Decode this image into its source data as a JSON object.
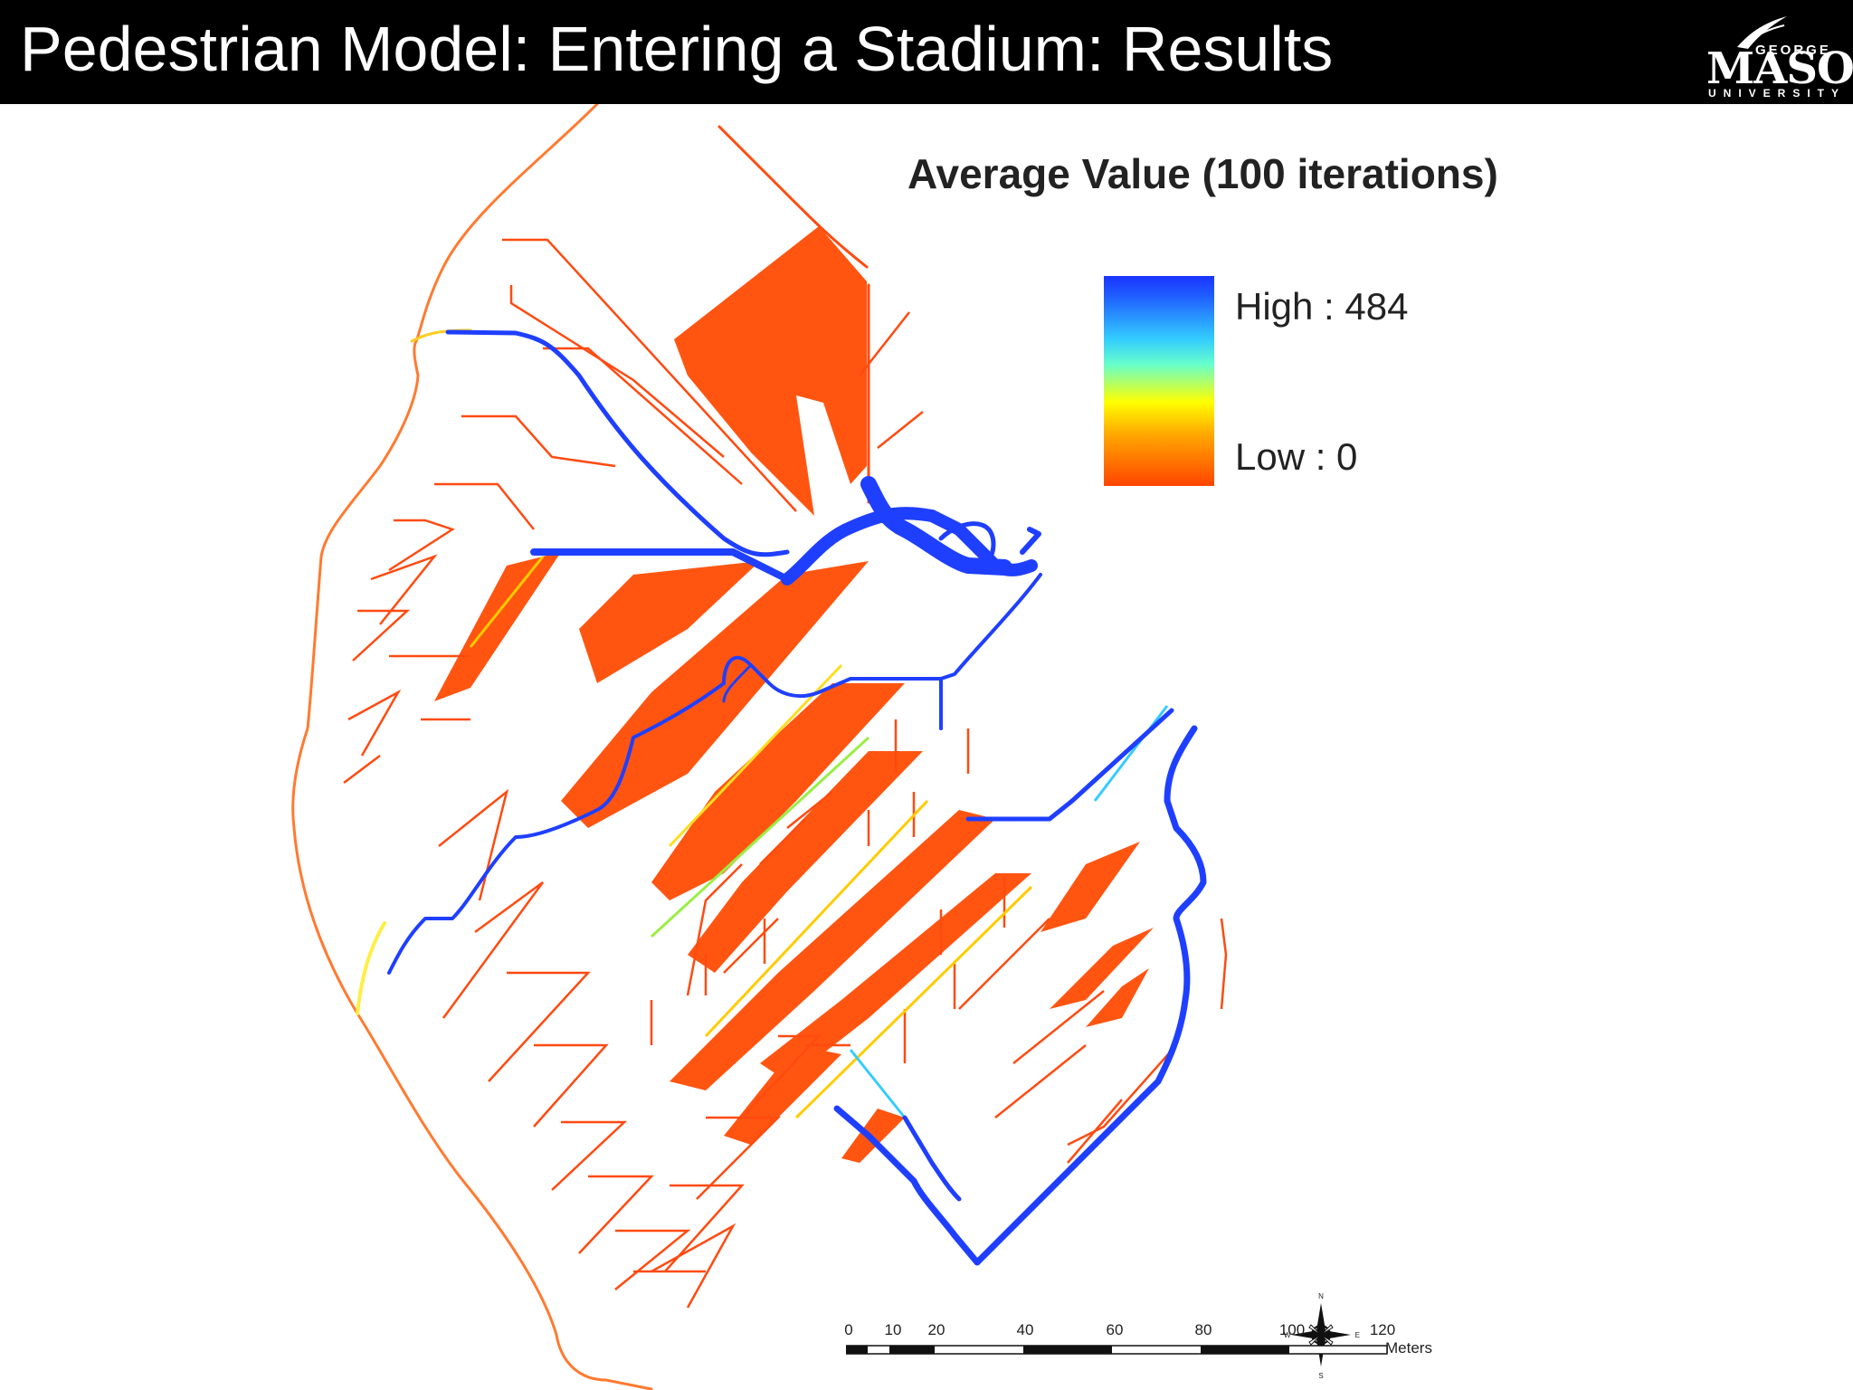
{
  "slide": {
    "title": "Pedestrian Model: Entering a Stadium: Results"
  },
  "logo": {
    "line1": "GEORGE",
    "line2": "MASON",
    "line3": "UNIVERSITY"
  },
  "legend": {
    "title": "Average Value (100 iterations)",
    "high_label": "High : 484",
    "low_label": "Low : 0",
    "color_high": "#1a33ff",
    "color_mid_cyan": "#33ccff",
    "color_mid_yellow": "#ffff00",
    "color_low": "#ff4400"
  },
  "north_arrow": {
    "n": "N",
    "s": "S",
    "e": "E",
    "w": "W"
  },
  "scale_bar": {
    "ticks": [
      "0",
      "10",
      "20",
      "40",
      "60",
      "80",
      "100",
      "120"
    ],
    "units": "Meters"
  },
  "map_colors": {
    "low_path": "#ff4a10",
    "mid_path": "#ffcc00",
    "high_path": "#1f3fff",
    "dense_fill": "#ff5511"
  }
}
